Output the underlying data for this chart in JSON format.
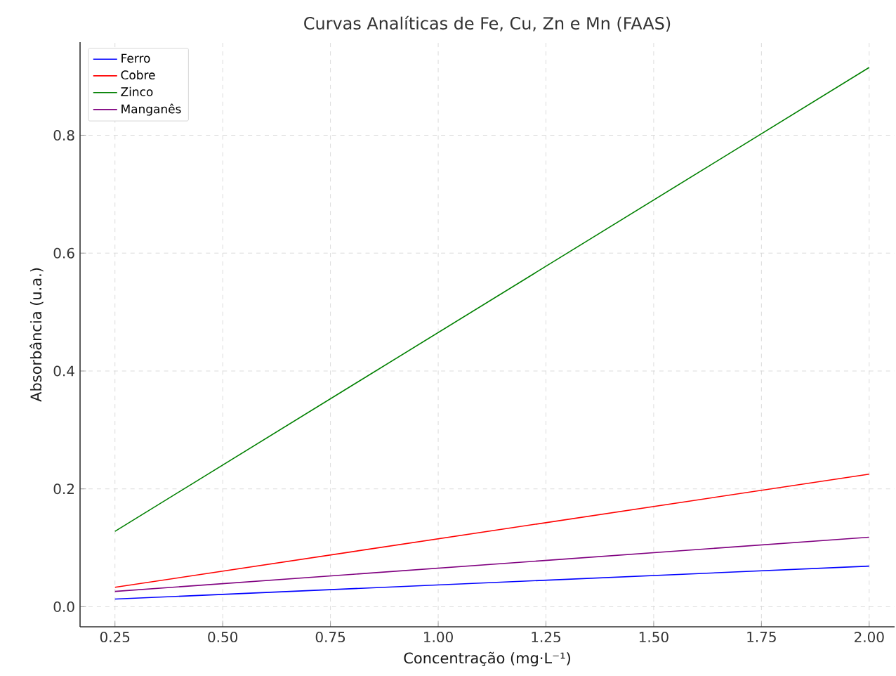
{
  "chart_data": {
    "type": "line",
    "title": "Curvas Analíticas de Fe, Cu, Zn e Mn (FAAS)",
    "xlabel": "Concentração (mg·L⁻¹)",
    "ylabel": "Absorbância (u.a.)",
    "x": [
      0.25,
      2.0
    ],
    "series": [
      {
        "name": "Ferro",
        "color": "#0000ff",
        "values": [
          0.013,
          0.069
        ]
      },
      {
        "name": "Cobre",
        "color": "#ff0000",
        "values": [
          0.033,
          0.225
        ]
      },
      {
        "name": "Zinco",
        "color": "#008000",
        "values": [
          0.128,
          0.915
        ]
      },
      {
        "name": "Manganês",
        "color": "#800080",
        "values": [
          0.026,
          0.118
        ]
      }
    ],
    "xlim": [
      0.169,
      2.059
    ],
    "ylim": [
      -0.034,
      0.958
    ],
    "xticks": [
      {
        "value": 0.25,
        "label": "0.25"
      },
      {
        "value": 0.5,
        "label": "0.50"
      },
      {
        "value": 0.75,
        "label": "0.75"
      },
      {
        "value": 1.0,
        "label": "1.00"
      },
      {
        "value": 1.25,
        "label": "1.25"
      },
      {
        "value": 1.5,
        "label": "1.50"
      },
      {
        "value": 1.75,
        "label": "1.75"
      },
      {
        "value": 2.0,
        "label": "2.00"
      }
    ],
    "yticks": [
      {
        "value": 0,
        "label": "0.0"
      },
      {
        "value": 0.2,
        "label": "0.2"
      },
      {
        "value": 0.4,
        "label": "0.4"
      },
      {
        "value": 0.6,
        "label": "0.6"
      },
      {
        "value": 0.8,
        "label": "0.8"
      }
    ],
    "grid": true,
    "legend": "top left",
    "line_style": "solid",
    "marker": "none"
  }
}
